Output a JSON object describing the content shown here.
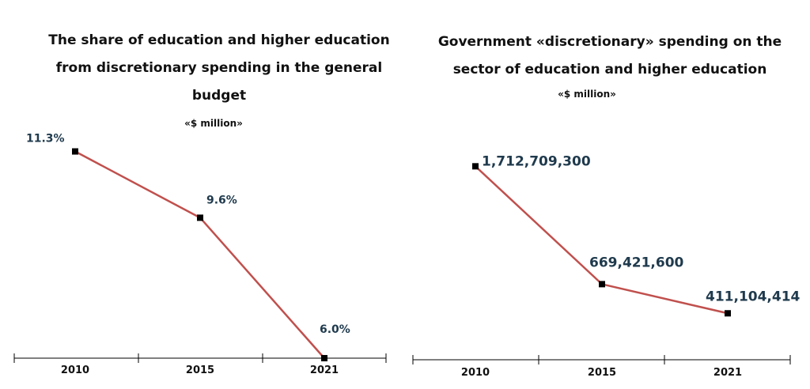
{
  "chart_data": [
    {
      "type": "line",
      "title": "The share of education and higher education from discretionary spending in the general budget",
      "unit_label": "«$ million»",
      "categories": [
        "2010",
        "2015",
        "2021"
      ],
      "values": [
        11.3,
        9.6,
        6.0
      ],
      "data_labels": [
        "11.3%",
        "9.6%",
        "6.0%"
      ],
      "ylim": [
        6.0,
        12.0
      ],
      "series_color": "#c0504d",
      "marker_color": "#000000",
      "label_color": "#1f3a4d"
    },
    {
      "type": "line",
      "title": "Government «discretionary» spending on the sector of education and higher education",
      "unit_label": "«$ million»",
      "categories": [
        "2010",
        "2015",
        "2021"
      ],
      "values": [
        1712709300,
        669421600,
        411104414
      ],
      "data_labels": [
        "1,712,709,300",
        "669,421,600",
        "411,104,414"
      ],
      "ylim": [
        0,
        2100000000
      ],
      "series_color": "#c0504d",
      "marker_color": "#000000",
      "label_color": "#1f3a4d"
    }
  ]
}
